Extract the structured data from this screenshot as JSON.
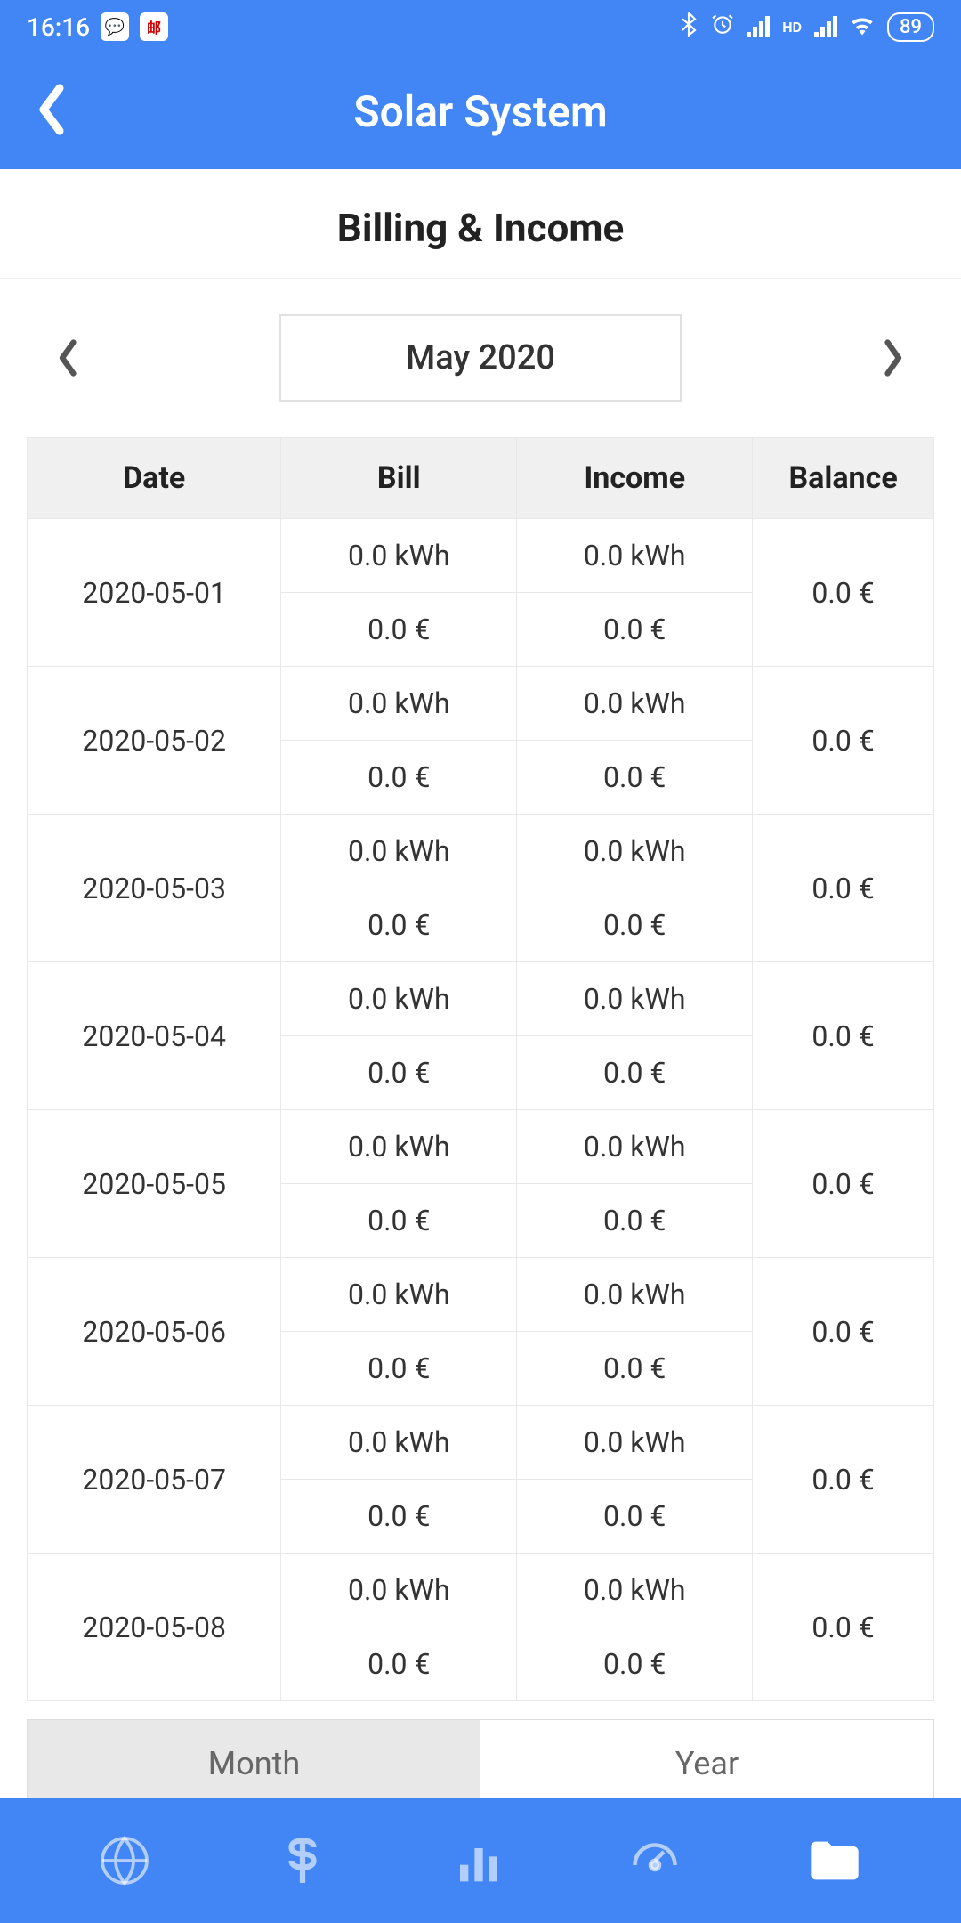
{
  "status": {
    "time": "16:16",
    "battery": "89"
  },
  "header": {
    "title": "Solar System"
  },
  "section": {
    "title": "Billing & Income"
  },
  "datePicker": {
    "current": "May 2020"
  },
  "table": {
    "headers": {
      "date": "Date",
      "bill": "Bill",
      "income": "Income",
      "balance": "Balance"
    },
    "rows": [
      {
        "date": "2020-05-01",
        "billKwh": "0.0 kWh",
        "billEur": "0.0 €",
        "incomeKwh": "0.0 kWh",
        "incomeEur": "0.0 €",
        "balance": "0.0 €"
      },
      {
        "date": "2020-05-02",
        "billKwh": "0.0 kWh",
        "billEur": "0.0 €",
        "incomeKwh": "0.0 kWh",
        "incomeEur": "0.0 €",
        "balance": "0.0 €"
      },
      {
        "date": "2020-05-03",
        "billKwh": "0.0 kWh",
        "billEur": "0.0 €",
        "incomeKwh": "0.0 kWh",
        "incomeEur": "0.0 €",
        "balance": "0.0 €"
      },
      {
        "date": "2020-05-04",
        "billKwh": "0.0 kWh",
        "billEur": "0.0 €",
        "incomeKwh": "0.0 kWh",
        "incomeEur": "0.0 €",
        "balance": "0.0 €"
      },
      {
        "date": "2020-05-05",
        "billKwh": "0.0 kWh",
        "billEur": "0.0 €",
        "incomeKwh": "0.0 kWh",
        "incomeEur": "0.0 €",
        "balance": "0.0 €"
      },
      {
        "date": "2020-05-06",
        "billKwh": "0.0 kWh",
        "billEur": "0.0 €",
        "incomeKwh": "0.0 kWh",
        "incomeEur": "0.0 €",
        "balance": "0.0 €"
      },
      {
        "date": "2020-05-07",
        "billKwh": "0.0 kWh",
        "billEur": "0.0 €",
        "incomeKwh": "0.0 kWh",
        "incomeEur": "0.0 €",
        "balance": "0.0 €"
      },
      {
        "date": "2020-05-08",
        "billKwh": "0.0 kWh",
        "billEur": "0.0 €",
        "incomeKwh": "0.0 kWh",
        "incomeEur": "0.0 €",
        "balance": "0.0 €"
      }
    ]
  },
  "toggle": {
    "month": "Month",
    "year": "Year"
  },
  "colors": {
    "primary": "#4285f4",
    "headerBg": "#f0f0f0",
    "border": "#e8e8e8",
    "text": "#333333"
  }
}
